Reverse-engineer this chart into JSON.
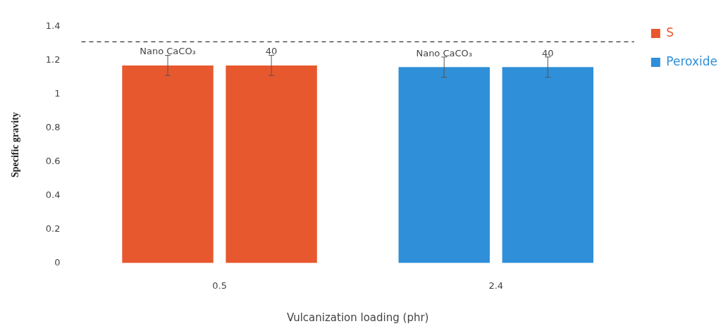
{
  "chart_data": {
    "type": "bar",
    "xlabel": "Vulcanization loading (phr)",
    "ylabel": "Specific gravity",
    "categories": [
      "0.5",
      "2.4"
    ],
    "series": [
      {
        "name": "S",
        "color": "#e8582e",
        "values": [
          1.17,
          null
        ],
        "errors": [
          0.06,
          null
        ]
      },
      {
        "color": "#e8582e",
        "values": [
          1.17,
          null
        ],
        "errors": [
          0.06,
          null
        ]
      },
      {
        "name": "Peroxide",
        "color": "#2f8fd8",
        "values": [
          null,
          1.16
        ],
        "errors": [
          null,
          0.06
        ]
      },
      {
        "color": "#2f8fd8",
        "values": [
          null,
          1.16
        ],
        "errors": [
          null,
          0.06
        ]
      }
    ],
    "annotations": [
      "Nano CaCO₃",
      "40",
      "Nano CaCO₃",
      "40"
    ],
    "ylim": [
      0,
      1.4
    ],
    "yticks": [
      0,
      0.2,
      0.4,
      0.6,
      0.8,
      1,
      1.2,
      1.4
    ],
    "ref_lines": [
      {
        "axis": "y",
        "value": 1.31,
        "color": "#333333",
        "line_style": "dashed"
      }
    ],
    "grid": false,
    "legend": "top right"
  }
}
